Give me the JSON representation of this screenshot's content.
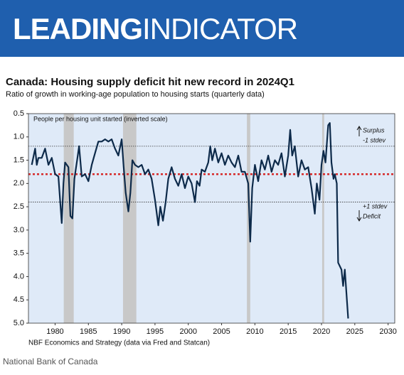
{
  "header": {
    "brand_bold": "LEADING",
    "brand_light": "INDICATOR"
  },
  "chart_data": {
    "type": "line",
    "title": "Canada: Housing supply deficit hit new record in 2024Q1",
    "subtitle": "Ratio of growth in working-age population to housing starts (quarterly data)",
    "y_label": "People per housing unit started (inverted scale)",
    "source": "NBF Economics and Strategy (data via Fred and Statcan)",
    "annotations": {
      "surplus": "Surplus",
      "minus_stdev": "-1 stdev",
      "plus_stdev": "+1 stdev",
      "deficit": "Deficit"
    },
    "xlim": [
      1976,
      2031
    ],
    "xticks": [
      1980,
      1985,
      1990,
      1995,
      2000,
      2005,
      2010,
      2015,
      2020,
      2025,
      2030
    ],
    "ylim": [
      0.5,
      5.0
    ],
    "y_inverted": true,
    "yticks": [
      0.5,
      {
        "value": 1,
        "label": "1.0"
      },
      1.5,
      {
        "value": 2,
        "label": "2.0"
      },
      2.5,
      {
        "value": 3,
        "label": "3.0"
      },
      3.5,
      {
        "value": 4,
        "label": "4.0"
      },
      4.5,
      {
        "value": 5,
        "label": "5.0"
      }
    ],
    "mean_line": 1.8,
    "mean_color": "#d62828",
    "stdev_lines": [
      1.2,
      2.4
    ],
    "shaded_periods": [
      [
        1981.3,
        1982.8
      ],
      [
        1990.2,
        1992.2
      ],
      [
        2008.8,
        2009.3
      ],
      [
        2020.1,
        2020.4
      ]
    ],
    "shade_color": "#c8c8c8",
    "background": "#dfeaf8",
    "series": [
      {
        "name": "Ratio",
        "color": "#0d2a4a",
        "x": [
          1976.5,
          1977,
          1977.25,
          1977.5,
          1978,
          1978.5,
          1979,
          1979.5,
          1980,
          1980.5,
          1981,
          1981.25,
          1981.5,
          1982,
          1982.3,
          1982.6,
          1982.9,
          1983.3,
          1983.6,
          1984,
          1984.5,
          1985,
          1985.5,
          1986,
          1986.5,
          1987,
          1987.5,
          1988,
          1988.5,
          1989,
          1989.5,
          1990,
          1990.3,
          1990.6,
          1991,
          1991.3,
          1991.6,
          1992,
          1992.5,
          1993,
          1993.5,
          1994,
          1994.5,
          1995,
          1995.5,
          1995.8,
          1996.2,
          1996.6,
          1997,
          1997.5,
          1998,
          1998.5,
          1999,
          1999.5,
          2000,
          2000.5,
          2001,
          2001.3,
          2001.7,
          2002,
          2002.5,
          2003,
          2003.3,
          2003.6,
          2004,
          2004.5,
          2005,
          2005.5,
          2006,
          2006.5,
          2007,
          2007.5,
          2008,
          2008.5,
          2009,
          2009.3,
          2009.6,
          2010,
          2010.5,
          2011,
          2011.5,
          2012,
          2012.5,
          2013,
          2013.5,
          2014,
          2014.5,
          2015,
          2015.3,
          2015.6,
          2016,
          2016.5,
          2017,
          2017.5,
          2018,
          2018.5,
          2019,
          2019.3,
          2019.7,
          2020,
          2020.3,
          2020.6,
          2021,
          2021.25,
          2021.5,
          2021.8,
          2022,
          2022.3,
          2022.5,
          2023,
          2023.25,
          2023.5,
          2024
        ],
        "values": [
          1.6,
          1.25,
          1.6,
          1.45,
          1.45,
          1.25,
          1.6,
          1.45,
          1.8,
          1.85,
          2.85,
          2.0,
          1.55,
          1.65,
          2.7,
          2.75,
          1.9,
          1.5,
          1.2,
          1.85,
          1.8,
          1.95,
          1.6,
          1.35,
          1.1,
          1.1,
          1.05,
          1.1,
          1.05,
          1.25,
          1.4,
          1.05,
          1.65,
          2.2,
          2.6,
          2.2,
          1.5,
          1.6,
          1.65,
          1.6,
          1.8,
          1.7,
          1.9,
          2.35,
          2.9,
          2.5,
          2.8,
          2.4,
          1.9,
          1.65,
          1.9,
          2.05,
          1.8,
          2.1,
          1.85,
          2.0,
          2.4,
          1.95,
          2.05,
          1.7,
          1.75,
          1.55,
          1.2,
          1.5,
          1.25,
          1.55,
          1.35,
          1.6,
          1.4,
          1.55,
          1.65,
          1.4,
          1.75,
          1.75,
          2.0,
          3.25,
          2.1,
          1.6,
          1.95,
          1.5,
          1.7,
          1.4,
          1.75,
          1.5,
          1.6,
          1.35,
          1.85,
          1.4,
          0.85,
          1.4,
          1.2,
          1.85,
          1.5,
          1.7,
          1.65,
          2.1,
          2.65,
          2.0,
          2.35,
          1.6,
          1.3,
          1.55,
          0.75,
          0.7,
          1.55,
          1.9,
          1.8,
          2.0,
          3.7,
          3.85,
          4.2,
          3.85,
          4.9
        ]
      }
    ]
  },
  "footer": {
    "credit": "National Bank of Canada"
  }
}
